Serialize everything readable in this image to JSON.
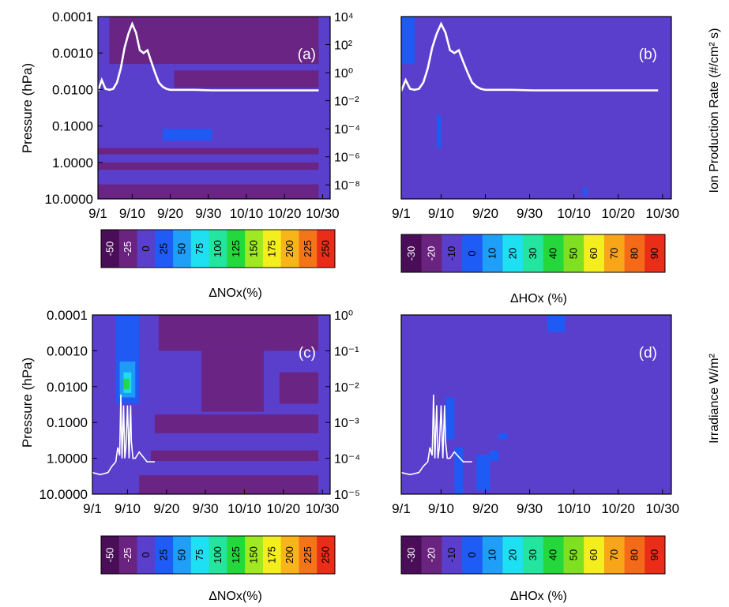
{
  "figure": {
    "panel_labels": [
      "(a)",
      "(b)",
      "(c)",
      "(d)"
    ],
    "x_tick_labels": [
      "9/1",
      "9/10",
      "9/20",
      "9/30",
      "10/10",
      "10/20",
      "10/30"
    ],
    "pressure_tick_labels": [
      "0.0001",
      "0.0010",
      "0.0100",
      "0.1000",
      "1.0000",
      "10.0000"
    ],
    "left_axis_label": "Pressure (hPa)",
    "right_axis_label_top": "Ion Production Rate (#/cm² s)",
    "right_axis_label_bottom": "Irradiance W/m²",
    "colorbar_nox_label": "ΔNOx(%)",
    "colorbar_hox_label": "ΔHOx (%)"
  },
  "colors": {
    "background_field": "#5a3fcc",
    "negative_patch": "#6a237f",
    "dark_negative": "#4a0f55",
    "overlay_line": "#ffffff",
    "nox_scale": [
      "#4a0d57",
      "#6a237f",
      "#5a3fcc",
      "#1e5cf5",
      "#1f9ff7",
      "#1fdff2",
      "#23e5a0",
      "#24d83c",
      "#9fe822",
      "#f4ee1e",
      "#f8b51a",
      "#f47418",
      "#ea2d18"
    ],
    "hox_scale": [
      "#4a0d57",
      "#6a237f",
      "#5a3fcc",
      "#1e5cf5",
      "#1f9ff7",
      "#1fdff2",
      "#23e5a0",
      "#24d83c",
      "#7fe022",
      "#f4ee1e",
      "#f8a51a",
      "#f46a18",
      "#ea2d18"
    ]
  },
  "chart_data": [
    {
      "id": "a",
      "type": "heatmap",
      "panel_label": "(a)",
      "xlabel": "",
      "ylabel": "Pressure (hPa)",
      "x_ticks": [
        "9/1",
        "9/10",
        "9/20",
        "9/30",
        "10/10",
        "10/20",
        "10/30"
      ],
      "y_ticks": [
        "0.0001",
        "0.0010",
        "0.0100",
        "0.1000",
        "1.0000",
        "10.0000"
      ],
      "y_scale": "log",
      "ylim": [
        10.0,
        0.0001
      ],
      "colorbar": {
        "label": "ΔNOx(%)",
        "levels": [
          -50,
          -25,
          0,
          25,
          50,
          75,
          100,
          125,
          150,
          175,
          200,
          225,
          250
        ]
      },
      "dominant_level": 0,
      "patches": [
        {
          "level": -25,
          "x": [
            3,
            58
          ],
          "y": [
            0.0001,
            0.002
          ]
        },
        {
          "level": -25,
          "x": [
            20,
            58
          ],
          "y": [
            0.003,
            0.009
          ]
        },
        {
          "level": -25,
          "x": [
            0,
            58
          ],
          "y": [
            0.4,
            0.6
          ]
        },
        {
          "level": -25,
          "x": [
            0,
            58
          ],
          "y": [
            1.0,
            1.6
          ]
        },
        {
          "level": -25,
          "x": [
            0,
            58
          ],
          "y": [
            4.0,
            10.0
          ]
        },
        {
          "level": 25,
          "x": [
            17,
            30
          ],
          "y": [
            0.12,
            0.25
          ]
        }
      ],
      "overlay": {
        "label": "Ion Production Rate (#/cm² s)",
        "y_scale": "log",
        "ylim": [
          1e-09,
          10000
        ],
        "y_ticks": [
          "10^4",
          "10^2",
          "10^0",
          "10^-2",
          "10^-4",
          "10^-6",
          "10^-8"
        ],
        "x": [
          0,
          1,
          2,
          3,
          4,
          5,
          6,
          7,
          8,
          9,
          10,
          11,
          12,
          13,
          14,
          15,
          16,
          17,
          18,
          19,
          20,
          22,
          25,
          30,
          35,
          40,
          45,
          50,
          55,
          58
        ],
        "y": [
          0.05,
          0.3,
          0.07,
          0.06,
          0.07,
          0.2,
          2,
          60,
          600,
          3000,
          700,
          40,
          25,
          40,
          6,
          1,
          0.2,
          0.1,
          0.07,
          0.06,
          0.06,
          0.06,
          0.06,
          0.055,
          0.055,
          0.055,
          0.055,
          0.055,
          0.055,
          0.055
        ]
      }
    },
    {
      "id": "b",
      "type": "heatmap",
      "panel_label": "(b)",
      "xlabel": "",
      "ylabel": "",
      "x_ticks": [
        "9/1",
        "9/10",
        "9/20",
        "9/30",
        "10/10",
        "10/20",
        "10/30"
      ],
      "y_scale": "log",
      "ylim": [
        10.0,
        0.0001
      ],
      "colorbar": {
        "label": "ΔHOx (%)",
        "levels": [
          -30,
          -20,
          -10,
          0,
          10,
          20,
          30,
          40,
          50,
          60,
          70,
          80,
          90
        ]
      },
      "dominant_level": -10,
      "patches": [
        {
          "level": 0,
          "x": [
            0,
            3
          ],
          "y": [
            0.0001,
            0.002
          ]
        },
        {
          "level": 0,
          "x": [
            8,
            9
          ],
          "y": [
            0.05,
            0.4
          ]
        },
        {
          "level": 0,
          "x": [
            41,
            42
          ],
          "y": [
            5.0,
            8.0
          ]
        }
      ],
      "overlay": {
        "label": "Ion Production Rate (#/cm² s)",
        "y_scale": "log",
        "ylim": [
          1e-09,
          10000
        ],
        "x": [
          0,
          1,
          2,
          3,
          4,
          5,
          6,
          7,
          8,
          9,
          10,
          11,
          12,
          13,
          14,
          15,
          16,
          17,
          18,
          19,
          20,
          22,
          25,
          30,
          35,
          40,
          45,
          50,
          55,
          58
        ],
        "y": [
          0.05,
          0.3,
          0.07,
          0.06,
          0.07,
          0.2,
          2,
          60,
          600,
          3000,
          700,
          40,
          25,
          40,
          6,
          1,
          0.2,
          0.1,
          0.07,
          0.06,
          0.06,
          0.06,
          0.06,
          0.055,
          0.055,
          0.055,
          0.055,
          0.055,
          0.055,
          0.055
        ]
      }
    },
    {
      "id": "c",
      "type": "heatmap",
      "panel_label": "(c)",
      "xlabel": "",
      "ylabel": "Pressure (hPa)",
      "x_ticks": [
        "9/1",
        "9/10",
        "9/20",
        "9/30",
        "10/10",
        "10/20",
        "10/30"
      ],
      "y_ticks": [
        "0.0001",
        "0.0010",
        "0.0100",
        "0.1000",
        "1.0000",
        "10.0000"
      ],
      "y_scale": "log",
      "ylim": [
        10.0,
        0.0001
      ],
      "colorbar": {
        "label": "ΔNOx(%)",
        "levels": [
          -50,
          -25,
          0,
          25,
          50,
          75,
          100,
          125,
          150,
          175,
          200,
          225,
          250
        ]
      },
      "dominant_level": 0,
      "patches": [
        {
          "level": -25,
          "x": [
            17,
            58
          ],
          "y": [
            0.0001,
            0.001
          ]
        },
        {
          "level": -25,
          "x": [
            28,
            44
          ],
          "y": [
            0.001,
            0.05
          ]
        },
        {
          "level": -25,
          "x": [
            48,
            58
          ],
          "y": [
            0.004,
            0.03
          ]
        },
        {
          "level": -25,
          "x": [
            16,
            58
          ],
          "y": [
            0.06,
            0.2
          ]
        },
        {
          "level": -25,
          "x": [
            15,
            58
          ],
          "y": [
            0.6,
            1.2
          ]
        },
        {
          "level": -25,
          "x": [
            12,
            58
          ],
          "y": [
            3.0,
            10.0
          ]
        },
        {
          "level": 25,
          "x": [
            6,
            12
          ],
          "y": [
            0.0001,
            0.03
          ]
        },
        {
          "level": 50,
          "x": [
            7,
            11
          ],
          "y": [
            0.002,
            0.02
          ]
        },
        {
          "level": 75,
          "x": [
            8,
            10
          ],
          "y": [
            0.004,
            0.015
          ]
        },
        {
          "level": 125,
          "x": [
            8,
            9.5
          ],
          "y": [
            0.006,
            0.012
          ]
        }
      ],
      "overlay": {
        "label": "Irradiance W/m²",
        "y_scale": "log",
        "ylim": [
          1e-05,
          1
        ],
        "y_ticks": [
          "10^0",
          "10^-1",
          "10^-2",
          "10^-3",
          "10^-4",
          "10^-5"
        ],
        "x": [
          0,
          2,
          4,
          5,
          6,
          6.5,
          7,
          7.3,
          7.6,
          8,
          8.3,
          8.6,
          9,
          9.4,
          9.8,
          10,
          10.4,
          11,
          12,
          14,
          16
        ],
        "y": [
          4e-05,
          3.5e-05,
          4e-05,
          6e-05,
          8e-05,
          0.0002,
          0.00012,
          0.006,
          0.0001,
          0.003,
          0.0001,
          0.0002,
          0.003,
          0.0001,
          0.003,
          0.0003,
          0.0001,
          0.0001,
          0.00015,
          8e-05,
          8e-05
        ]
      }
    },
    {
      "id": "d",
      "type": "heatmap",
      "panel_label": "(d)",
      "xlabel": "",
      "ylabel": "",
      "x_ticks": [
        "9/1",
        "9/10",
        "9/20",
        "9/30",
        "10/10",
        "10/20",
        "10/30"
      ],
      "y_scale": "log",
      "ylim": [
        10.0,
        0.0001
      ],
      "colorbar": {
        "label": "ΔHOx (%)",
        "levels": [
          -30,
          -20,
          -10,
          0,
          10,
          20,
          30,
          40,
          50,
          60,
          70,
          80,
          90
        ]
      },
      "dominant_level": -10,
      "patches": [
        {
          "level": 0,
          "x": [
            10,
            12
          ],
          "y": [
            0.02,
            0.3
          ]
        },
        {
          "level": 0,
          "x": [
            12,
            14
          ],
          "y": [
            0.5,
            10.0
          ]
        },
        {
          "level": 0,
          "x": [
            17,
            20
          ],
          "y": [
            0.8,
            8.0
          ]
        },
        {
          "level": 0,
          "x": [
            22,
            24
          ],
          "y": [
            0.2,
            0.3
          ]
        },
        {
          "level": 0,
          "x": [
            20,
            22
          ],
          "y": [
            0.6,
            1.2
          ]
        },
        {
          "level": 0,
          "x": [
            33,
            37
          ],
          "y": [
            0.0001,
            0.0003
          ]
        }
      ],
      "overlay": {
        "label": "Irradiance W/m²",
        "y_scale": "log",
        "ylim": [
          1e-05,
          1
        ],
        "x": [
          0,
          2,
          4,
          5,
          6,
          6.5,
          7,
          7.3,
          7.6,
          8,
          8.3,
          8.6,
          9,
          9.4,
          9.8,
          10,
          10.4,
          11,
          12,
          14,
          16
        ],
        "y": [
          4e-05,
          3.5e-05,
          4e-05,
          6e-05,
          8e-05,
          0.0002,
          0.00012,
          0.006,
          0.0001,
          0.003,
          0.0001,
          0.0002,
          0.003,
          0.0001,
          0.003,
          0.0003,
          0.0001,
          0.0001,
          0.00015,
          8e-05,
          8e-05
        ]
      }
    }
  ]
}
